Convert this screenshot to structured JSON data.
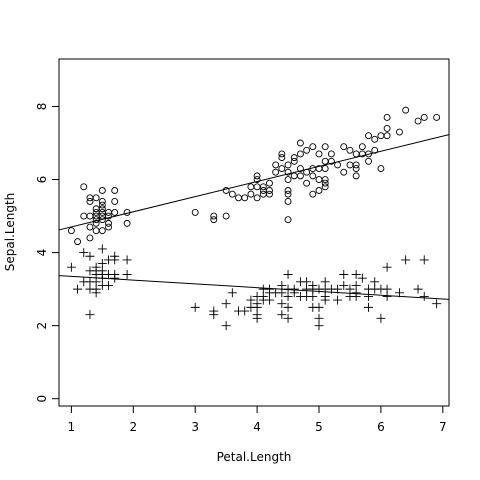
{
  "chart_data": {
    "type": "scatter",
    "title": "",
    "xlabel": "Petal.Length",
    "ylabel": "Sepal.Length",
    "xlim": [
      0.8,
      7.1
    ],
    "ylim": [
      -0.2,
      9.3
    ],
    "xticks": [
      1,
      2,
      3,
      4,
      5,
      6,
      7
    ],
    "yticks": [
      0,
      2,
      4,
      6,
      8
    ],
    "grid": false,
    "series": [
      {
        "marker": "circle",
        "points": [
          [
            1.0,
            4.6
          ],
          [
            1.1,
            4.3
          ],
          [
            1.2,
            5.8
          ],
          [
            1.2,
            5.0
          ],
          [
            1.3,
            4.4
          ],
          [
            1.3,
            4.7
          ],
          [
            1.3,
            5.0
          ],
          [
            1.3,
            5.4
          ],
          [
            1.3,
            5.5
          ],
          [
            1.4,
            4.6
          ],
          [
            1.4,
            4.8
          ],
          [
            1.4,
            4.9
          ],
          [
            1.4,
            5.0
          ],
          [
            1.4,
            5.1
          ],
          [
            1.4,
            5.2
          ],
          [
            1.4,
            5.5
          ],
          [
            1.5,
            4.6
          ],
          [
            1.5,
            4.9
          ],
          [
            1.5,
            5.0
          ],
          [
            1.5,
            5.1
          ],
          [
            1.5,
            5.2
          ],
          [
            1.5,
            5.3
          ],
          [
            1.5,
            5.4
          ],
          [
            1.5,
            5.7
          ],
          [
            1.6,
            4.7
          ],
          [
            1.6,
            4.8
          ],
          [
            1.6,
            5.0
          ],
          [
            1.6,
            5.1
          ],
          [
            1.7,
            5.1
          ],
          [
            1.7,
            5.4
          ],
          [
            1.7,
            5.7
          ],
          [
            1.9,
            4.8
          ],
          [
            1.9,
            5.1
          ],
          [
            3.0,
            5.1
          ],
          [
            3.3,
            4.9
          ],
          [
            3.3,
            5.0
          ],
          [
            3.5,
            5.0
          ],
          [
            3.5,
            5.7
          ],
          [
            3.6,
            5.6
          ],
          [
            3.7,
            5.5
          ],
          [
            3.8,
            5.5
          ],
          [
            3.9,
            5.6
          ],
          [
            3.9,
            5.8
          ],
          [
            4.0,
            5.5
          ],
          [
            4.0,
            5.8
          ],
          [
            4.0,
            6.0
          ],
          [
            4.0,
            6.1
          ],
          [
            4.1,
            5.6
          ],
          [
            4.1,
            5.7
          ],
          [
            4.1,
            5.8
          ],
          [
            4.2,
            5.6
          ],
          [
            4.2,
            5.7
          ],
          [
            4.2,
            5.9
          ],
          [
            4.3,
            6.2
          ],
          [
            4.3,
            6.4
          ],
          [
            4.4,
            6.3
          ],
          [
            4.4,
            6.6
          ],
          [
            4.4,
            6.7
          ],
          [
            4.5,
            4.9
          ],
          [
            4.5,
            5.4
          ],
          [
            4.5,
            5.6
          ],
          [
            4.5,
            5.7
          ],
          [
            4.5,
            6.0
          ],
          [
            4.5,
            6.2
          ],
          [
            4.5,
            6.4
          ],
          [
            4.6,
            6.1
          ],
          [
            4.6,
            6.5
          ],
          [
            4.6,
            6.6
          ],
          [
            4.7,
            6.1
          ],
          [
            4.7,
            6.3
          ],
          [
            4.7,
            6.7
          ],
          [
            4.7,
            7.0
          ],
          [
            4.8,
            5.9
          ],
          [
            4.8,
            6.2
          ],
          [
            4.8,
            6.8
          ],
          [
            4.9,
            5.6
          ],
          [
            4.9,
            6.1
          ],
          [
            4.9,
            6.3
          ],
          [
            4.9,
            6.9
          ],
          [
            5.0,
            5.7
          ],
          [
            5.0,
            6.0
          ],
          [
            5.0,
            6.3
          ],
          [
            5.0,
            6.7
          ],
          [
            5.1,
            5.8
          ],
          [
            5.1,
            5.9
          ],
          [
            5.1,
            6.0
          ],
          [
            5.1,
            6.3
          ],
          [
            5.1,
            6.5
          ],
          [
            5.1,
            6.9
          ],
          [
            5.2,
            6.5
          ],
          [
            5.2,
            6.7
          ],
          [
            5.3,
            6.4
          ],
          [
            5.4,
            6.2
          ],
          [
            5.4,
            6.9
          ],
          [
            5.5,
            6.4
          ],
          [
            5.5,
            6.8
          ],
          [
            5.6,
            6.1
          ],
          [
            5.6,
            6.3
          ],
          [
            5.6,
            6.4
          ],
          [
            5.6,
            6.7
          ],
          [
            5.7,
            6.7
          ],
          [
            5.7,
            6.9
          ],
          [
            5.8,
            6.5
          ],
          [
            5.8,
            6.7
          ],
          [
            5.8,
            7.2
          ],
          [
            5.9,
            6.8
          ],
          [
            5.9,
            7.1
          ],
          [
            6.0,
            6.3
          ],
          [
            6.0,
            7.2
          ],
          [
            6.1,
            7.2
          ],
          [
            6.1,
            7.4
          ],
          [
            6.1,
            7.7
          ],
          [
            6.3,
            7.3
          ],
          [
            6.4,
            7.9
          ],
          [
            6.6,
            7.6
          ],
          [
            6.7,
            7.7
          ],
          [
            6.9,
            7.7
          ]
        ]
      },
      {
        "marker": "plus",
        "points": [
          [
            1.0,
            3.6
          ],
          [
            1.1,
            3.0
          ],
          [
            1.2,
            4.0
          ],
          [
            1.2,
            3.2
          ],
          [
            1.3,
            2.3
          ],
          [
            1.3,
            3.0
          ],
          [
            1.3,
            3.2
          ],
          [
            1.3,
            3.5
          ],
          [
            1.3,
            3.9
          ],
          [
            1.4,
            2.9
          ],
          [
            1.4,
            3.0
          ],
          [
            1.4,
            3.2
          ],
          [
            1.4,
            3.4
          ],
          [
            1.4,
            3.5
          ],
          [
            1.4,
            3.6
          ],
          [
            1.5,
            3.1
          ],
          [
            1.5,
            3.3
          ],
          [
            1.5,
            3.4
          ],
          [
            1.5,
            3.5
          ],
          [
            1.5,
            3.7
          ],
          [
            1.5,
            4.1
          ],
          [
            1.6,
            3.1
          ],
          [
            1.6,
            3.4
          ],
          [
            1.6,
            3.8
          ],
          [
            1.7,
            3.3
          ],
          [
            1.7,
            3.4
          ],
          [
            1.7,
            3.8
          ],
          [
            1.7,
            3.9
          ],
          [
            1.9,
            3.4
          ],
          [
            1.9,
            3.8
          ],
          [
            3.0,
            2.5
          ],
          [
            3.3,
            2.3
          ],
          [
            3.3,
            2.4
          ],
          [
            3.5,
            2.0
          ],
          [
            3.5,
            2.6
          ],
          [
            3.6,
            2.9
          ],
          [
            3.7,
            2.4
          ],
          [
            3.8,
            2.4
          ],
          [
            3.9,
            2.5
          ],
          [
            3.9,
            2.7
          ],
          [
            4.0,
            2.2
          ],
          [
            4.0,
            2.3
          ],
          [
            4.0,
            2.5
          ],
          [
            4.0,
            2.6
          ],
          [
            4.0,
            2.8
          ],
          [
            4.1,
            2.7
          ],
          [
            4.1,
            2.8
          ],
          [
            4.1,
            3.0
          ],
          [
            4.2,
            2.7
          ],
          [
            4.2,
            2.9
          ],
          [
            4.2,
            3.0
          ],
          [
            4.3,
            2.9
          ],
          [
            4.4,
            2.3
          ],
          [
            4.4,
            2.6
          ],
          [
            4.4,
            2.9
          ],
          [
            4.4,
            3.1
          ],
          [
            4.5,
            2.2
          ],
          [
            4.5,
            2.5
          ],
          [
            4.5,
            2.8
          ],
          [
            4.5,
            3.0
          ],
          [
            4.5,
            3.4
          ],
          [
            4.6,
            2.9
          ],
          [
            4.6,
            3.0
          ],
          [
            4.7,
            2.8
          ],
          [
            4.7,
            3.2
          ],
          [
            4.8,
            2.8
          ],
          [
            4.8,
            3.0
          ],
          [
            4.8,
            3.2
          ],
          [
            4.9,
            2.5
          ],
          [
            4.9,
            2.8
          ],
          [
            4.9,
            3.0
          ],
          [
            4.9,
            3.1
          ],
          [
            5.0,
            2.0
          ],
          [
            5.0,
            2.2
          ],
          [
            5.0,
            2.5
          ],
          [
            5.0,
            3.0
          ],
          [
            5.1,
            2.7
          ],
          [
            5.1,
            2.8
          ],
          [
            5.1,
            3.0
          ],
          [
            5.1,
            3.2
          ],
          [
            5.2,
            3.0
          ],
          [
            5.3,
            2.7
          ],
          [
            5.3,
            3.0
          ],
          [
            5.4,
            3.1
          ],
          [
            5.4,
            3.4
          ],
          [
            5.5,
            2.8
          ],
          [
            5.5,
            3.0
          ],
          [
            5.6,
            2.8
          ],
          [
            5.6,
            2.9
          ],
          [
            5.6,
            3.1
          ],
          [
            5.6,
            3.4
          ],
          [
            5.7,
            3.3
          ],
          [
            5.8,
            2.5
          ],
          [
            5.8,
            2.8
          ],
          [
            5.8,
            3.0
          ],
          [
            5.9,
            3.0
          ],
          [
            5.9,
            3.2
          ],
          [
            6.0,
            2.2
          ],
          [
            6.0,
            3.0
          ],
          [
            6.1,
            2.8
          ],
          [
            6.1,
            3.0
          ],
          [
            6.1,
            3.6
          ],
          [
            6.3,
            2.9
          ],
          [
            6.4,
            3.8
          ],
          [
            6.6,
            3.0
          ],
          [
            6.7,
            2.8
          ],
          [
            6.7,
            3.8
          ],
          [
            6.9,
            2.6
          ]
        ]
      }
    ],
    "lines": [
      {
        "x": [
          0.8,
          7.1
        ],
        "y": [
          4.62,
          7.23
        ]
      },
      {
        "x": [
          0.8,
          7.1
        ],
        "y": [
          3.37,
          2.72
        ]
      }
    ]
  }
}
